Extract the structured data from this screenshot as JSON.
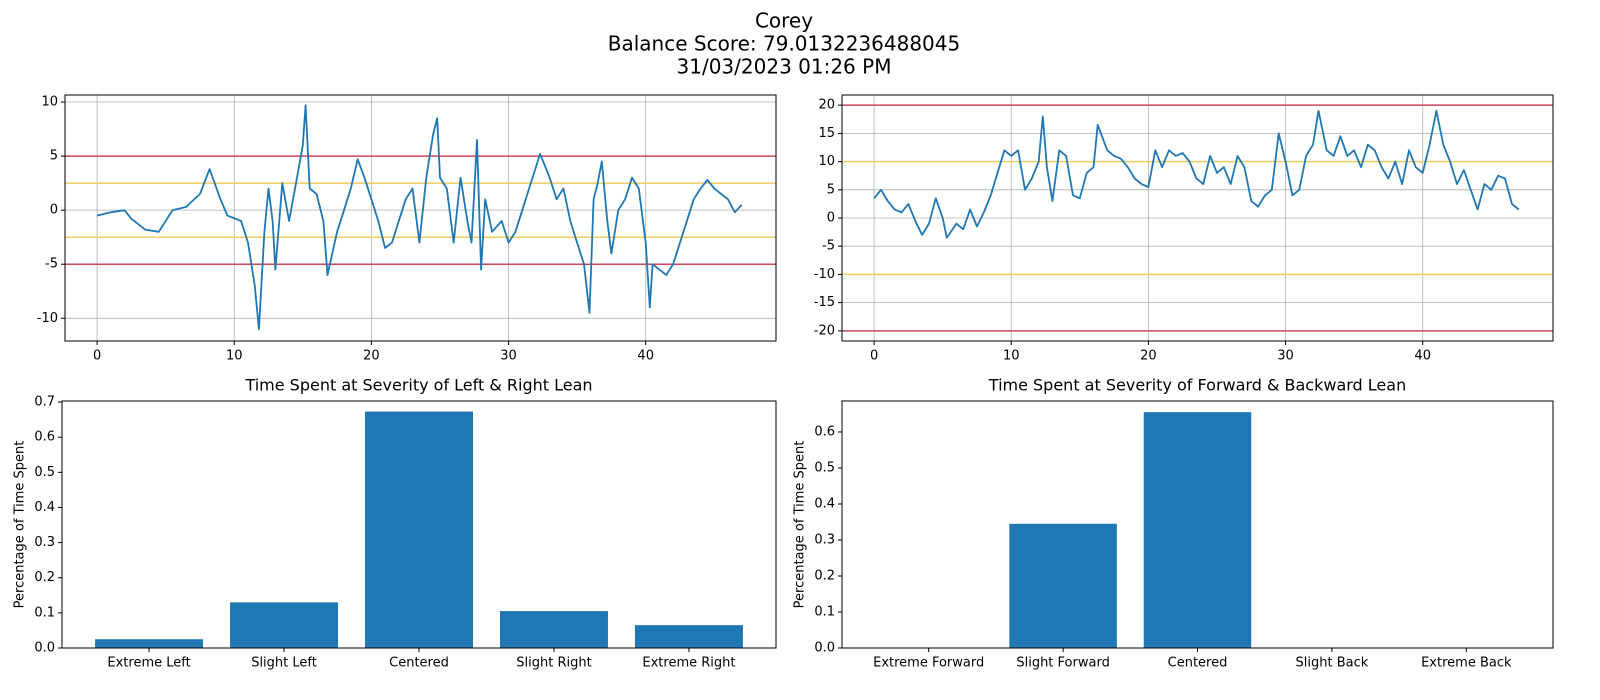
{
  "title": [
    "Corey",
    "Balance Score: 79.0132236488045",
    "31/03/2023 01:26 PM"
  ],
  "chart_data": [
    {
      "type": "line",
      "color": "#1f77b4",
      "grid": true,
      "xlim": [
        -2.34,
        49.5
      ],
      "ylim": [
        -12.1,
        10.65
      ],
      "xticks": [
        0,
        10,
        20,
        30,
        40
      ],
      "yticks": [
        -10,
        -5,
        0,
        5,
        10
      ],
      "hlines": [
        {
          "value": 5,
          "color": "#c8475c"
        },
        {
          "value": -5,
          "color": "#c8475c"
        },
        {
          "value": 2.5,
          "color": "#f2cd62"
        },
        {
          "value": -2.5,
          "color": "#f2cd62"
        }
      ],
      "x": [
        0,
        1,
        2,
        2.5,
        3.5,
        4.5,
        5.5,
        6.5,
        7.5,
        8.2,
        9,
        9.5,
        10.5,
        11,
        11.5,
        11.8,
        12.2,
        12.5,
        12.8,
        13,
        13.5,
        14,
        14.5,
        15,
        15.2,
        15.5,
        16,
        16.5,
        16.8,
        17.5,
        18,
        18.5,
        19,
        19.5,
        20,
        20.5,
        21,
        21.5,
        22,
        22.5,
        23,
        23.5,
        24,
        24.5,
        24.8,
        25,
        25.5,
        26,
        26.5,
        27,
        27.3,
        27.7,
        28,
        28.3,
        28.8,
        29.5,
        30,
        30.5,
        31,
        31.5,
        32.3,
        33,
        33.5,
        34,
        34.5,
        35,
        35.5,
        35.9,
        36.2,
        36.5,
        36.8,
        37.2,
        37.5,
        38,
        38.5,
        39,
        39.5,
        40,
        40.3,
        40.5,
        41,
        41.5,
        42,
        42.5,
        43,
        43.5,
        44,
        44.5,
        45,
        45.5,
        46,
        46.5,
        47
      ],
      "values": [
        -0.5,
        -0.2,
        0,
        -0.8,
        -1.8,
        -2,
        0,
        0.3,
        1.5,
        3.8,
        1,
        -0.5,
        -1,
        -3,
        -7,
        -11,
        -2,
        2,
        -1,
        -5.5,
        2.5,
        -1,
        2.5,
        6,
        9.7,
        2,
        1.5,
        -1,
        -6,
        -2,
        0,
        2,
        4.7,
        3,
        1,
        -1,
        -3.5,
        -3,
        -1,
        1,
        2,
        -3,
        3,
        7,
        8.5,
        3,
        2,
        -3,
        3,
        -1,
        -3,
        6.5,
        -5.5,
        1,
        -2,
        -1,
        -3,
        -2,
        0,
        2,
        5.2,
        3,
        1,
        2,
        -1,
        -3,
        -5,
        -9.5,
        1,
        2.5,
        4.5,
        -1,
        -4,
        0,
        1,
        3,
        2,
        -3,
        -9,
        -5,
        -5.5,
        -6,
        -5,
        -3,
        -1,
        1,
        2,
        2.8,
        2,
        1.5,
        1,
        -0.2,
        0.5
      ]
    },
    {
      "type": "line",
      "color": "#1f77b4",
      "grid": true,
      "xlim": [
        -2.34,
        49.5
      ],
      "ylim": [
        -21.8,
        21.8
      ],
      "xticks": [
        0,
        10,
        20,
        30,
        40
      ],
      "yticks": [
        -20,
        -15,
        -10,
        -5,
        0,
        5,
        10,
        15,
        20
      ],
      "hlines": [
        {
          "value": 20,
          "color": "#c8475c"
        },
        {
          "value": -20,
          "color": "#c8475c"
        },
        {
          "value": 10,
          "color": "#f2cd62"
        },
        {
          "value": -10,
          "color": "#f2cd62"
        }
      ],
      "x": [
        0,
        0.5,
        1,
        1.5,
        2,
        2.5,
        3,
        3.5,
        4,
        4.5,
        5,
        5.3,
        6,
        6.5,
        7,
        7.5,
        8,
        8.5,
        9,
        9.5,
        10,
        10.5,
        11,
        11.5,
        12,
        12.3,
        12.6,
        13,
        13.5,
        14,
        14.5,
        15,
        15.5,
        16,
        16.3,
        17,
        17.5,
        18,
        18.5,
        19,
        19.5,
        20,
        20.5,
        21,
        21.5,
        22,
        22.5,
        23,
        23.5,
        24,
        24.5,
        25,
        25.5,
        26,
        26.5,
        27,
        27.5,
        28,
        28.5,
        29,
        29.5,
        30,
        30.5,
        31,
        31.5,
        32,
        32.4,
        33,
        33.5,
        34,
        34.5,
        35,
        35.5,
        36,
        36.5,
        37,
        37.5,
        38,
        38.5,
        39,
        39.5,
        40,
        40.5,
        41,
        41.5,
        42,
        42.5,
        43,
        43.5,
        44,
        44.5,
        45,
        45.5,
        46,
        46.5,
        47
      ],
      "values": [
        3.5,
        5,
        3,
        1.5,
        1,
        2.5,
        -0.5,
        -3,
        -1,
        3.5,
        0,
        -3.5,
        -1,
        -2,
        1.5,
        -1.5,
        1,
        4,
        8,
        12,
        11,
        12,
        5,
        7,
        10,
        18,
        9,
        3,
        12,
        11,
        4,
        3.5,
        8,
        9,
        16.5,
        12,
        11,
        10.5,
        9,
        7,
        6,
        5.5,
        12,
        9,
        12,
        11,
        11.5,
        10,
        7,
        6,
        11,
        8,
        9,
        6,
        11,
        9,
        3,
        2,
        4,
        5,
        15,
        10,
        4,
        5,
        11,
        13,
        19,
        12,
        11,
        14.5,
        11,
        12,
        9,
        13,
        12,
        9,
        7,
        10,
        6,
        12,
        9,
        8,
        13,
        19,
        13,
        10,
        6,
        8.5,
        5,
        1.5,
        6,
        5,
        7.5,
        7,
        2.5,
        1.5
      ]
    },
    {
      "type": "bar",
      "title": "Time Spent at Severity of Left & Right Lean",
      "ylabel": "Percentage of Time Spent",
      "color": "#1f77b4",
      "grid": false,
      "categories": [
        "Extreme Left",
        "Slight Left",
        "Centered",
        "Slight Right",
        "Extreme Right"
      ],
      "values": [
        0.025,
        0.13,
        0.673,
        0.105,
        0.065
      ],
      "ylim": [
        0,
        0.703
      ],
      "yticks": [
        {
          "value": 0,
          "label": "0.0"
        },
        0.1,
        0.2,
        0.3,
        0.4,
        0.5,
        0.6,
        0.7
      ]
    },
    {
      "type": "bar",
      "title": "Time Spent at Severity of Forward & Backward Lean",
      "ylabel": "Percentage of Time Spent",
      "color": "#1f77b4",
      "grid": false,
      "categories": [
        "Extreme Forward",
        "Slight Forward",
        "Centered",
        "Slight Back",
        "Extreme Back"
      ],
      "values": [
        0,
        0.345,
        0.655,
        0,
        0
      ],
      "ylim": [
        0,
        0.686
      ],
      "yticks": [
        {
          "value": 0,
          "label": "0.0"
        },
        0.1,
        0.2,
        0.3,
        0.4,
        0.5,
        0.6
      ]
    }
  ]
}
